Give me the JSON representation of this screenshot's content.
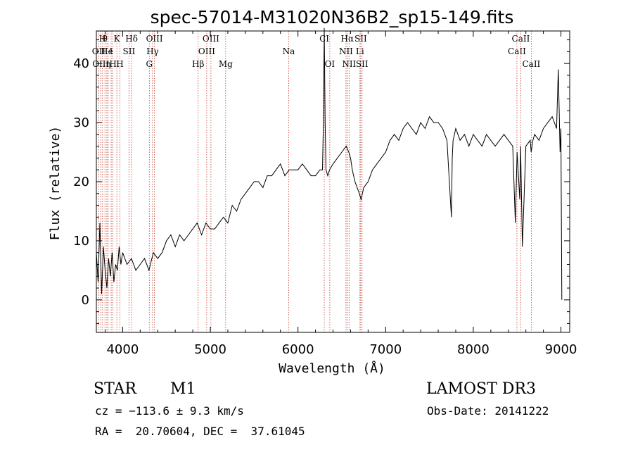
{
  "chart_data": {
    "type": "line",
    "title": "spec-57014-M31020N36B2_sp15-149.fits",
    "xlabel": "Wavelength (Å)",
    "ylabel": "Flux (relative)",
    "xlim": [
      3700,
      9100
    ],
    "ylim": [
      -5.5,
      45.5
    ],
    "x_ticks": [
      4000,
      5000,
      6000,
      7000,
      8000,
      9000
    ],
    "y_ticks": [
      0,
      10,
      20,
      30,
      40
    ],
    "grid": false,
    "series": [
      {
        "x": [
          3700,
          3720,
          3740,
          3760,
          3780,
          3800,
          3820,
          3840,
          3860,
          3880,
          3900,
          3920,
          3940,
          3960,
          3980,
          4000,
          4050,
          4100,
          4150,
          4200,
          4250,
          4300,
          4350,
          4400,
          4450,
          4500,
          4550,
          4600,
          4650,
          4700,
          4750,
          4800,
          4850,
          4900,
          4950,
          5000,
          5050,
          5100,
          5150,
          5200,
          5250,
          5300,
          5350,
          5400,
          5450,
          5500,
          5550,
          5600,
          5650,
          5700,
          5750,
          5800,
          5850,
          5900,
          5950,
          6000,
          6050,
          6100,
          6150,
          6200,
          6250,
          6280,
          6290,
          6300,
          6310,
          6320,
          6340,
          6360,
          6400,
          6450,
          6500,
          6550,
          6580,
          6600,
          6620,
          6650,
          6700,
          6720,
          6750,
          6800,
          6850,
          6900,
          6950,
          7000,
          7050,
          7100,
          7150,
          7200,
          7250,
          7300,
          7350,
          7400,
          7450,
          7500,
          7550,
          7600,
          7650,
          7700,
          7750,
          7760,
          7770,
          7800,
          7850,
          7900,
          7950,
          8000,
          8050,
          8100,
          8150,
          8200,
          8250,
          8300,
          8350,
          8400,
          8450,
          8480,
          8500,
          8530,
          8540,
          8560,
          8600,
          8650,
          8660,
          8680,
          8700,
          8750,
          8800,
          8850,
          8900,
          8950,
          8970,
          8990,
          9000,
          9010
        ],
        "y": [
          8,
          3,
          13,
          1,
          9,
          5,
          2,
          7,
          4,
          8,
          3,
          6,
          5,
          9,
          6,
          8,
          6,
          7,
          5,
          6,
          7,
          5,
          8,
          7,
          8,
          10,
          11,
          9,
          11,
          10,
          11,
          12,
          13,
          11,
          13,
          12,
          12,
          13,
          14,
          13,
          16,
          15,
          17,
          18,
          19,
          20,
          20,
          19,
          21,
          21,
          22,
          23,
          21,
          22,
          22,
          22,
          23,
          22,
          21,
          21,
          22,
          22,
          30,
          46,
          30,
          22,
          21,
          22,
          23,
          24,
          25,
          26,
          25,
          24,
          22,
          20,
          18,
          17,
          19,
          20,
          22,
          23,
          24,
          25,
          27,
          28,
          27,
          29,
          30,
          29,
          28,
          30,
          29,
          31,
          30,
          30,
          29,
          27,
          14,
          24,
          27,
          29,
          27,
          28,
          26,
          28,
          27,
          26,
          28,
          27,
          26,
          27,
          28,
          27,
          26,
          13,
          25,
          17,
          26,
          9,
          26,
          27,
          25,
          27,
          28,
          27,
          29,
          30,
          31,
          29,
          39,
          25,
          29,
          0
        ],
        "color": "#000000"
      }
    ],
    "lines": [
      {
        "wavelength": 3727,
        "label": "OII",
        "row": 1
      },
      {
        "wavelength": 3750,
        "label": "OIII",
        "row": 2
      },
      {
        "wavelength": 3771,
        "label": "H",
        "row": 0
      },
      {
        "wavelength": 3798,
        "label": "θ",
        "row": 0
      },
      {
        "wavelength": 3820,
        "label": "He",
        "row": 1
      },
      {
        "wavelength": 3835,
        "label": "η",
        "row": 2
      },
      {
        "wavelength": 3869,
        "label": "I",
        "row": 1
      },
      {
        "wavelength": 3889,
        "label": "H",
        "row": 2
      },
      {
        "wavelength": 3934,
        "label": "K",
        "row": 0
      },
      {
        "wavelength": 3969,
        "label": "H",
        "row": 2
      },
      {
        "wavelength": 4072,
        "label": "SII",
        "row": 1
      },
      {
        "wavelength": 4102,
        "label": "Hδ",
        "row": 0
      },
      {
        "wavelength": 4304,
        "label": "G",
        "row": 2
      },
      {
        "wavelength": 4341,
        "label": "Hγ",
        "row": 1
      },
      {
        "wavelength": 4363,
        "label": "OIII",
        "row": 0
      },
      {
        "wavelength": 4861,
        "label": "Hβ",
        "row": 2
      },
      {
        "wavelength": 4959,
        "label": "OIII",
        "row": 1
      },
      {
        "wavelength": 5007,
        "label": "OIII",
        "row": 0
      },
      {
        "wavelength": 5175,
        "label": "Mg",
        "row": 2
      },
      {
        "wavelength": 5894,
        "label": "Na",
        "row": 1
      },
      {
        "wavelength": 6300,
        "label": "CI",
        "row": 0
      },
      {
        "wavelength": 6363,
        "label": "OI",
        "row": 2
      },
      {
        "wavelength": 6548,
        "label": "NII",
        "row": 1
      },
      {
        "wavelength": 6563,
        "label": "Hα",
        "row": 0
      },
      {
        "wavelength": 6583,
        "label": "NII",
        "row": 2
      },
      {
        "wavelength": 6707,
        "label": "Li",
        "row": 1
      },
      {
        "wavelength": 6716,
        "label": "SII",
        "row": 0
      },
      {
        "wavelength": 6731,
        "label": "SII",
        "row": 2
      },
      {
        "wavelength": 8498,
        "label": "CaII",
        "row": 1
      },
      {
        "wavelength": 8542,
        "label": "CaII",
        "row": 0
      },
      {
        "wavelength": 8662,
        "label": "CaII",
        "row": 2
      }
    ]
  },
  "info": {
    "class": "STAR",
    "subclass": "M1",
    "survey": "LAMOST DR3",
    "cz": "cz = −113.6 ± 9.3 km/s",
    "obs_date": "Obs-Date: 20141222",
    "coords": "RA =  20.70604, DEC =  37.61045"
  }
}
